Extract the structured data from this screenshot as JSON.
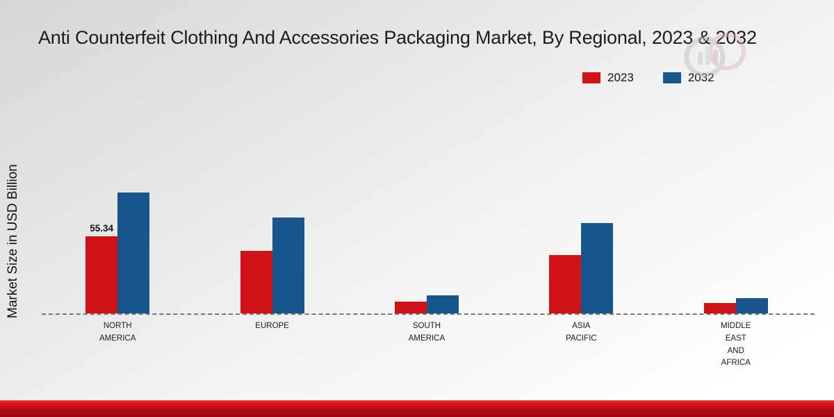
{
  "title": "Anti Counterfeit Clothing And Accessories Packaging Market, By Regional, 2023 & 2032",
  "ylabel": "Market Size in USD Billion",
  "colors": {
    "series_2023": "#cf1217",
    "series_2032": "#17558c",
    "bottom_band": "#c41218"
  },
  "chart_data": {
    "type": "bar",
    "title": "Anti Counterfeit Clothing And Accessories Packaging Market, By Regional, 2023 & 2032",
    "xlabel": "",
    "ylabel": "Market Size in USD Billion",
    "categories": [
      "NORTH AMERICA",
      "EUROPE",
      "SOUTH AMERICA",
      "ASIA PACIFIC",
      "MIDDLE EAST AND AFRICA"
    ],
    "category_lines": [
      [
        "NORTH",
        "AMERICA"
      ],
      [
        "EUROPE"
      ],
      [
        "SOUTH",
        "AMERICA"
      ],
      [
        "ASIA",
        "PACIFIC"
      ],
      [
        "MIDDLE",
        "EAST",
        "AND",
        "AFRICA"
      ]
    ],
    "series": [
      {
        "name": "2023",
        "color": "#cf1217",
        "values": [
          55.34,
          45,
          8.5,
          42,
          7.5
        ]
      },
      {
        "name": "2032",
        "color": "#17558c",
        "values": [
          87,
          69,
          13,
          65,
          11
        ]
      }
    ],
    "annotations": [
      {
        "series": "2023",
        "category_index": 0,
        "text": "55.34"
      }
    ],
    "ylim": [
      0,
      100
    ],
    "grid": false,
    "baseline_style": "dashed",
    "legend_position": "top-right"
  }
}
